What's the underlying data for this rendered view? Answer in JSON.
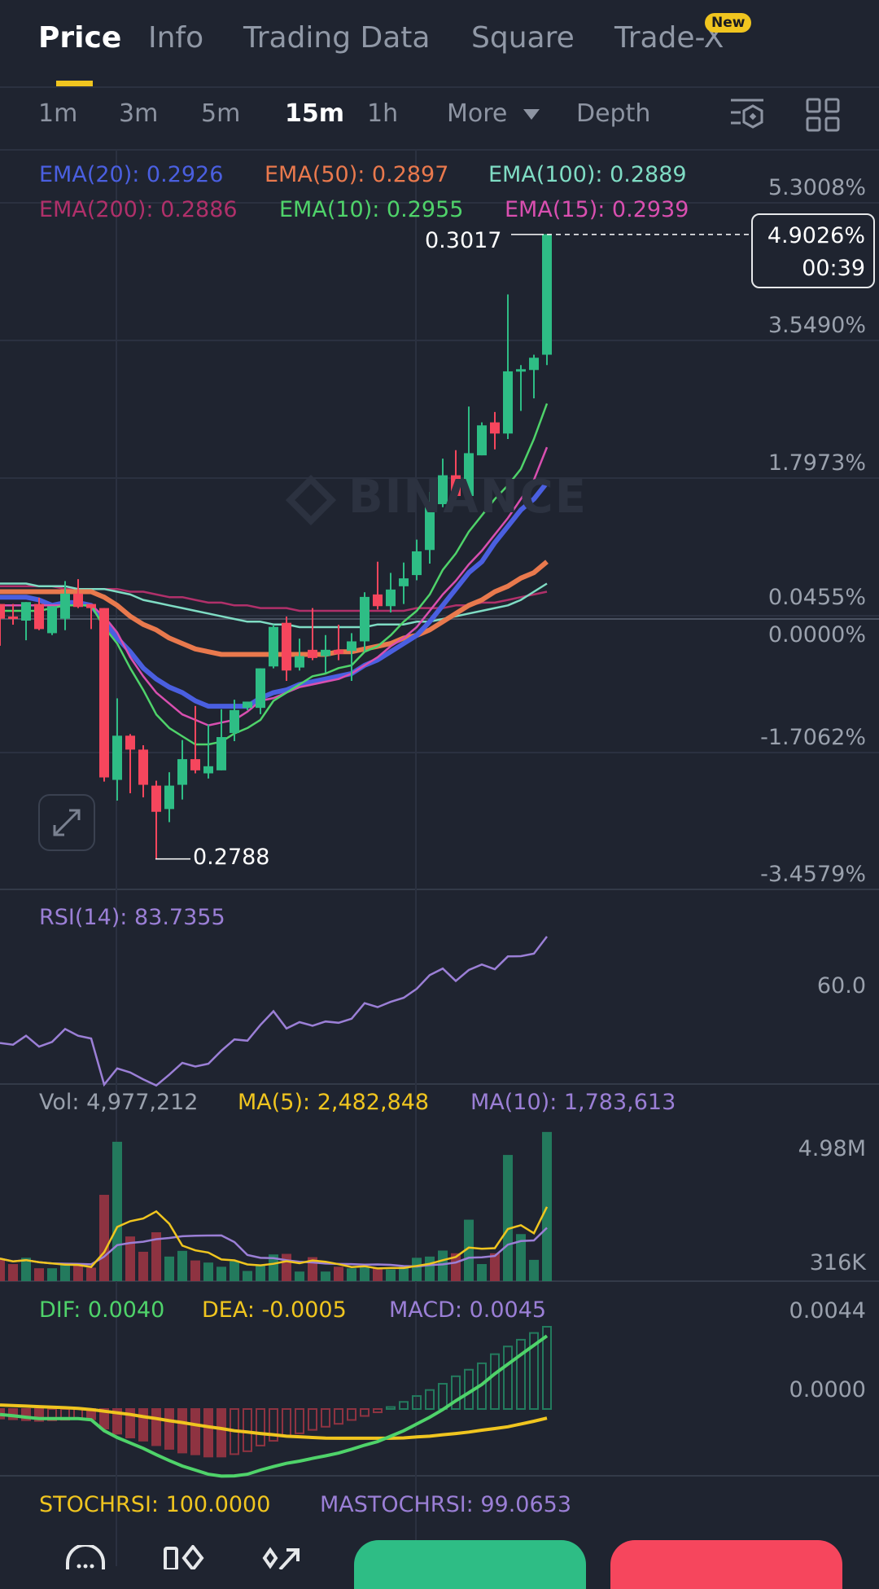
{
  "tabs": [
    {
      "label": "Price",
      "active": true
    },
    {
      "label": "Info"
    },
    {
      "label": "Trading Data"
    },
    {
      "label": "Square"
    },
    {
      "label": "Trade-X",
      "badge": "New"
    }
  ],
  "intervals": {
    "items": [
      "1m",
      "3m",
      "5m",
      "15m",
      "1h"
    ],
    "selected": "15m",
    "more_label": "More",
    "depth_label": "Depth",
    "icons": [
      "indicator-settings-icon",
      "layout-grid-icon"
    ]
  },
  "ema_legend": [
    {
      "label": "EMA(20): 0.2926",
      "color": "#4a5fe0"
    },
    {
      "label": "EMA(50): 0.2897",
      "color": "#e9794d"
    },
    {
      "label": "EMA(100): 0.2889",
      "color": "#7fdcc4"
    },
    {
      "label": "EMA(200): 0.2886",
      "color": "#b0306a"
    },
    {
      "label": "EMA(10): 0.2955",
      "color": "#4fd36a"
    },
    {
      "label": "EMA(15): 0.2939",
      "color": "#d94fb0"
    }
  ],
  "price_axis": [
    "5.3008%",
    "3.5490%",
    "1.7973%",
    "0.0455%",
    "0.0000%",
    "-1.7062%",
    "-3.4579%"
  ],
  "current": {
    "percent": "4.9026%",
    "countdown": "00:39"
  },
  "high_label": "0.3017",
  "low_label": "0.2788",
  "watermark": "BINANCE",
  "rsi": {
    "label": "RSI(14): 83.7355",
    "axis": "60.0",
    "color": "#9b7fd6"
  },
  "volume": {
    "vol_label": "Vol: 4,977,212",
    "ma5_label": "MA(5): 2,482,848",
    "ma10_label": "MA(10): 1,783,613",
    "axis_top": "4.98M",
    "axis_bottom": "316K"
  },
  "macd": {
    "dif_label": "DIF: 0.0040",
    "dea_label": "DEA: -0.0005",
    "macd_label": "MACD: 0.0045",
    "axis_top": "0.0044",
    "axis_zero": "0.0000"
  },
  "stochrsi": {
    "stoch_label": "STOCHRSI: 100.0000",
    "ma_label": "MASTOCHRSI: 99.0653"
  },
  "colors": {
    "up": "#2ebd85",
    "down": "#f6465d",
    "accent": "#f0c51f",
    "background": "#1f2430"
  },
  "bottom_bar": {
    "icons": [
      "chat-icon",
      "compare-icon",
      "share-icon"
    ],
    "buy_color": "#2ebd85",
    "sell_color": "#f6465d"
  },
  "chart_data": {
    "type": "candlestick",
    "interval": "15m",
    "candles_ohlc": [
      [
        0.28815,
        0.28815,
        0.28662,
        0.28761
      ],
      [
        0.28769,
        0.28815,
        0.28739,
        0.28761
      ],
      [
        0.28754,
        0.28822,
        0.28682,
        0.28822
      ],
      [
        0.28815,
        0.28838,
        0.28719,
        0.28723
      ],
      [
        0.28708,
        0.28807,
        0.28701,
        0.28807
      ],
      [
        0.28761,
        0.28899,
        0.28719,
        0.28853
      ],
      [
        0.28853,
        0.28906,
        0.288,
        0.28804
      ],
      [
        0.28815,
        0.28815,
        0.28723,
        0.288
      ],
      [
        0.288,
        0.288,
        0.28164,
        0.28179
      ],
      [
        0.2817,
        0.28469,
        0.28094,
        0.28332
      ],
      [
        0.28332,
        0.28338,
        0.28121,
        0.28281
      ],
      [
        0.28281,
        0.28297,
        0.28106,
        0.28152
      ],
      [
        0.28149,
        0.28167,
        0.27881,
        0.28053
      ],
      [
        0.28063,
        0.28198,
        0.28015,
        0.28149
      ],
      [
        0.28152,
        0.28316,
        0.28098,
        0.28246
      ],
      [
        0.28246,
        0.28441,
        0.28194,
        0.28205
      ],
      [
        0.28194,
        0.28373,
        0.28175,
        0.2822
      ],
      [
        0.28205,
        0.28429,
        0.28205,
        0.28327
      ],
      [
        0.28342,
        0.28464,
        0.28312,
        0.28426
      ],
      [
        0.28434,
        0.28457,
        0.28426,
        0.28457
      ],
      [
        0.28434,
        0.28579,
        0.28411,
        0.28579
      ],
      [
        0.28586,
        0.28739,
        0.28579,
        0.28731
      ],
      [
        0.28746,
        0.28769,
        0.28533,
        0.28571
      ],
      [
        0.28582,
        0.28688,
        0.28571,
        0.28624
      ],
      [
        0.28647,
        0.288,
        0.28609,
        0.28617
      ],
      [
        0.28624,
        0.28701,
        0.28563,
        0.28647
      ],
      [
        0.28647,
        0.28739,
        0.28609,
        0.28632
      ],
      [
        0.28643,
        0.28708,
        0.28533,
        0.28678
      ],
      [
        0.28678,
        0.28858,
        0.2864,
        0.28841
      ],
      [
        0.2885,
        0.2897,
        0.28795,
        0.28807
      ],
      [
        0.28807,
        0.28929,
        0.28784,
        0.28868
      ],
      [
        0.2888,
        0.28967,
        0.28815,
        0.28909
      ],
      [
        0.28921,
        0.29051,
        0.28902,
        0.29008
      ],
      [
        0.29013,
        0.29226,
        0.28963,
        0.29181
      ],
      [
        0.29181,
        0.29348,
        0.2917,
        0.29287
      ],
      [
        0.29287,
        0.29379,
        0.292,
        0.29211
      ],
      [
        0.29211,
        0.29539,
        0.29181,
        0.29368
      ],
      [
        0.2936,
        0.29481,
        0.2936,
        0.2947
      ],
      [
        0.29481,
        0.29519,
        0.29382,
        0.2944
      ],
      [
        0.2944,
        0.2995,
        0.2942,
        0.29668
      ],
      [
        0.29668,
        0.29691,
        0.29523,
        0.29676
      ],
      [
        0.29673,
        0.29729,
        0.29569,
        0.29718
      ],
      [
        0.29729,
        0.30171,
        0.29691,
        0.30171
      ]
    ],
    "ema": {
      "EMA(10)": [
        0.2879,
        0.2879,
        0.2879,
        0.2879,
        0.288,
        0.2881,
        0.2881,
        0.2881,
        0.2873,
        0.2867,
        0.2858,
        0.285,
        0.2841,
        0.2836,
        0.2833,
        0.283,
        0.283,
        0.2831,
        0.2834,
        0.2836,
        0.2839,
        0.2846,
        0.2849,
        0.2852,
        0.2855,
        0.2856,
        0.2858,
        0.2859,
        0.2864,
        0.2866,
        0.287,
        0.2875,
        0.2879,
        0.2885,
        0.2894,
        0.29,
        0.2908,
        0.2914,
        0.292,
        0.2925,
        0.2931,
        0.2942,
        0.2955
      ],
      "EMA(15)": [
        0.2881,
        0.2881,
        0.2881,
        0.2881,
        0.2881,
        0.2881,
        0.2881,
        0.2881,
        0.2877,
        0.2871,
        0.2862,
        0.2855,
        0.2849,
        0.2845,
        0.2841,
        0.2839,
        0.2837,
        0.2838,
        0.2839,
        0.2842,
        0.2846,
        0.2847,
        0.2849,
        0.2851,
        0.2852,
        0.2853,
        0.2854,
        0.2856,
        0.2859,
        0.2862,
        0.2866,
        0.2869,
        0.2873,
        0.2879,
        0.2885,
        0.289,
        0.2896,
        0.2901,
        0.2907,
        0.2913,
        0.292,
        0.2927,
        0.2939
      ],
      "EMA(20)": [
        0.2884,
        0.2884,
        0.2884,
        0.2883,
        0.2881,
        0.2882,
        0.2882,
        0.2881,
        0.2875,
        0.2869,
        0.2864,
        0.2858,
        0.2854,
        0.2851,
        0.2849,
        0.2846,
        0.2844,
        0.2844,
        0.2844,
        0.2844,
        0.2847,
        0.2849,
        0.285,
        0.2852,
        0.2853,
        0.2854,
        0.2855,
        0.2856,
        0.2859,
        0.2861,
        0.2864,
        0.2867,
        0.287,
        0.2875,
        0.2881,
        0.2887,
        0.2893,
        0.2897,
        0.2904,
        0.291,
        0.2916,
        0.292,
        0.2926
      ],
      "EMA(50)": [
        0.2886,
        0.2886,
        0.2886,
        0.2886,
        0.2886,
        0.2886,
        0.2886,
        0.2886,
        0.2884,
        0.2881,
        0.2877,
        0.2874,
        0.2872,
        0.2869,
        0.2867,
        0.2865,
        0.2864,
        0.2863,
        0.2863,
        0.2863,
        0.2863,
        0.2863,
        0.2863,
        0.2863,
        0.2863,
        0.2863,
        0.2864,
        0.2864,
        0.2865,
        0.2866,
        0.2867,
        0.2869,
        0.287,
        0.2872,
        0.2875,
        0.2878,
        0.2881,
        0.2883,
        0.2886,
        0.2888,
        0.2891,
        0.2893,
        0.2897
      ],
      "EMA(100)": [
        0.2889,
        0.2889,
        0.2889,
        0.2888,
        0.2888,
        0.2888,
        0.2887,
        0.2887,
        0.2887,
        0.2886,
        0.2885,
        0.2883,
        0.2882,
        0.2881,
        0.288,
        0.2879,
        0.2878,
        0.2877,
        0.2876,
        0.2875,
        0.2875,
        0.2874,
        0.2874,
        0.2873,
        0.2873,
        0.2873,
        0.2873,
        0.2873,
        0.2873,
        0.2874,
        0.2874,
        0.2874,
        0.2875,
        0.2875,
        0.2876,
        0.2877,
        0.2878,
        0.2879,
        0.288,
        0.2881,
        0.2883,
        0.2886,
        0.2889
      ],
      "EMA(200)": [
        0.2888,
        0.2888,
        0.2888,
        0.2888,
        0.2888,
        0.2887,
        0.2887,
        0.2887,
        0.2887,
        0.2887,
        0.2886,
        0.2886,
        0.2885,
        0.2884,
        0.2884,
        0.2883,
        0.2882,
        0.2882,
        0.2881,
        0.2881,
        0.288,
        0.288,
        0.288,
        0.2879,
        0.2879,
        0.2879,
        0.2879,
        0.2879,
        0.2879,
        0.2879,
        0.2879,
        0.2879,
        0.288,
        0.288,
        0.288,
        0.2881,
        0.2881,
        0.2882,
        0.2882,
        0.2883,
        0.2884,
        0.2885,
        0.2886
      ]
    },
    "volume_millions": [
      0.75,
      0.57,
      0.78,
      0.43,
      0.43,
      0.53,
      0.53,
      0.45,
      2.88,
      4.65,
      1.49,
      0.98,
      1.63,
      0.82,
      1.01,
      0.69,
      0.62,
      0.48,
      0.66,
      0.34,
      0.53,
      0.89,
      0.91,
      0.32,
      0.8,
      0.32,
      0.48,
      0.43,
      0.46,
      0.43,
      0.39,
      0.48,
      0.78,
      0.82,
      1.02,
      0.93,
      2.05,
      0.57,
      0.93,
      4.21,
      1.57,
      0.71,
      4.977
    ],
    "rsi14": [
      33.8,
      33.0,
      37.2,
      32.1,
      34.3,
      40.4,
      37.2,
      35.9,
      14.3,
      21.9,
      20.0,
      16.8,
      13.9,
      19.0,
      24.5,
      22.8,
      24.1,
      30.2,
      35.5,
      34.9,
      42.3,
      48.7,
      40.6,
      43.6,
      41.9,
      43.9,
      43.3,
      45.2,
      52.5,
      50.6,
      53.1,
      55.0,
      59.2,
      65.6,
      68.7,
      62.9,
      68.0,
      70.6,
      68.4,
      74.4,
      74.5,
      75.7,
      83.7
    ],
    "dif": [
      -0.0003,
      -0.00037,
      -0.00045,
      -0.00052,
      -0.00052,
      -0.00052,
      -0.00052,
      -0.00059,
      -0.00119,
      -0.00156,
      -0.00186,
      -0.00215,
      -0.0025,
      -0.00282,
      -0.00312,
      -0.00334,
      -0.00357,
      -0.00367,
      -0.00366,
      -0.00357,
      -0.00334,
      -0.00315,
      -0.00297,
      -0.00285,
      -0.0027,
      -0.00256,
      -0.00241,
      -0.0022,
      -0.00198,
      -0.00178,
      -0.00149,
      -0.00119,
      -0.00082,
      -0.00045,
      -3e-05,
      0.00045,
      0.00089,
      0.00134,
      0.00193,
      0.00245,
      0.00297,
      0.00349,
      0.004
    ],
    "dea": [
      0.00022,
      0.00019,
      0.00016,
      0.00013,
      0.0001,
      7e-05,
      3e-05,
      -3e-05,
      -0.00012,
      -0.00021,
      -0.0003,
      -0.00042,
      -0.00052,
      -0.00064,
      -0.00074,
      -0.00086,
      -0.00097,
      -0.00107,
      -0.00119,
      -0.00126,
      -0.00134,
      -0.00141,
      -0.00149,
      -0.00152,
      -0.00156,
      -0.00159,
      -0.0016,
      -0.0016,
      -0.0016,
      -0.0016,
      -0.0016,
      -0.00158,
      -0.00153,
      -0.00149,
      -0.00141,
      -0.00134,
      -0.00126,
      -0.00116,
      -0.00107,
      -0.00097,
      -0.00082,
      -0.00067,
      -0.0005
    ],
    "high": 0.3017,
    "low": 0.2788,
    "grid": true
  }
}
